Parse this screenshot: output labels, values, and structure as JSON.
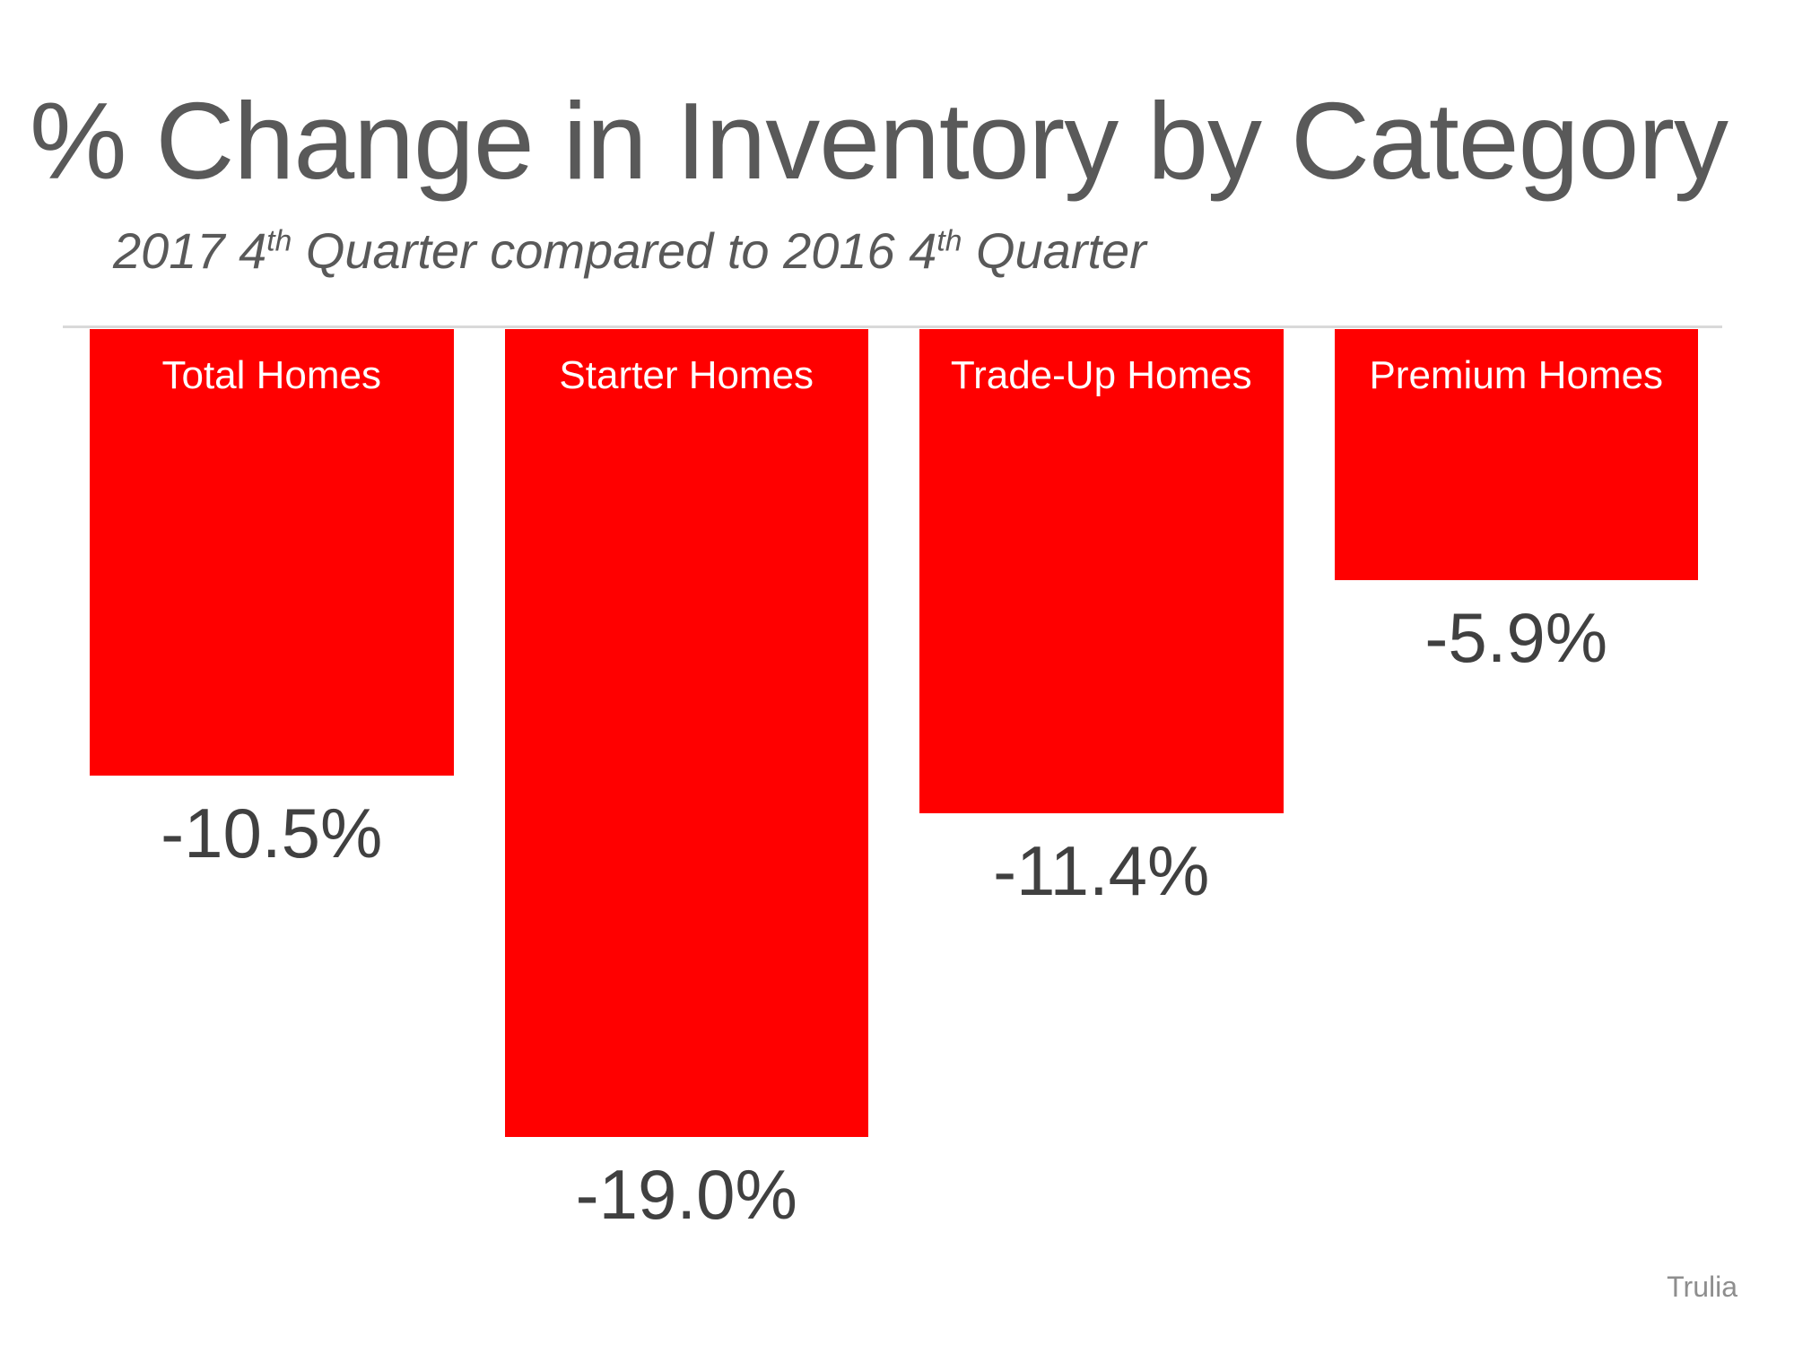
{
  "chart_data": {
    "type": "bar",
    "title": "% Change in Inventory by Category",
    "subtitle": "2017 4th Quarter compared to 2016 4th Quarter",
    "subtitle_segments": [
      {
        "text": "2017 4"
      },
      {
        "text": "th",
        "sup": true
      },
      {
        "text": " Quarter compared to 2016 4"
      },
      {
        "text": "th",
        "sup": true
      },
      {
        "text": " Quarter"
      }
    ],
    "categories": [
      "Total Homes",
      "Starter Homes",
      "Trade-Up Homes",
      "Premium Homes"
    ],
    "values": [
      -10.5,
      -19.0,
      -11.4,
      -5.9
    ],
    "value_labels": [
      "-10.5%",
      "-19.0%",
      "-11.4%",
      "-5.9%"
    ],
    "series_name": "% change in inventory, 2017 Q4 vs 2016 Q4",
    "source": "Trulia",
    "xlabel": "",
    "ylabel": "",
    "ylim": [
      -20,
      0
    ],
    "grid": "off",
    "legend": "none",
    "bars_direction": "downward-from-top-baseline",
    "colors": {
      "bar": "#ff0000",
      "category_label": "#ffffff",
      "value_label": "#404040",
      "title": "#595959",
      "subtitle": "#595959",
      "baseline": "#d9d9d9",
      "source": "#8e8e8e",
      "background": "#ffffff"
    }
  }
}
